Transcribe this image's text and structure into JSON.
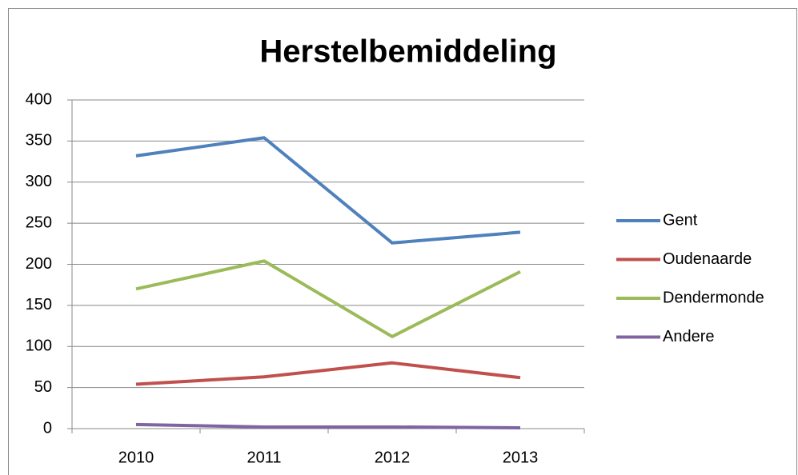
{
  "chart_data": {
    "type": "line",
    "title": "Herstelbemiddeling",
    "categories": [
      "2010",
      "2011",
      "2012",
      "2013"
    ],
    "series": [
      {
        "name": "Gent",
        "color": "#4f81bd",
        "values": [
          332,
          354,
          226,
          239
        ]
      },
      {
        "name": "Oudenaarde",
        "color": "#c0504d",
        "values": [
          54,
          63,
          80,
          62
        ]
      },
      {
        "name": "Dendermonde",
        "color": "#9bbb59",
        "values": [
          170,
          204,
          112,
          191
        ]
      },
      {
        "name": "Andere",
        "color": "#8064a2",
        "values": [
          5,
          2,
          2,
          1
        ]
      }
    ],
    "ylim": [
      0,
      400
    ],
    "yticks": [
      0,
      50,
      100,
      150,
      200,
      250,
      300,
      350,
      400
    ],
    "grid": true,
    "legend": "right"
  }
}
